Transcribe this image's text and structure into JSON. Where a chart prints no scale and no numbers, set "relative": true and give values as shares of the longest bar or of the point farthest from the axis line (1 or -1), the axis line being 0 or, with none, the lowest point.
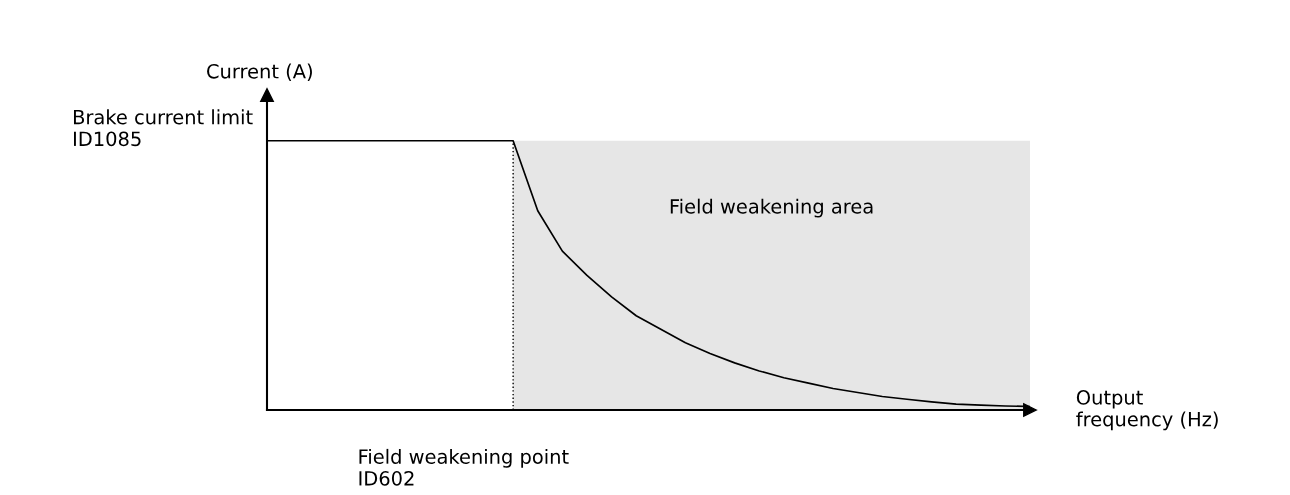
{
  "chart_data": {
    "type": "line",
    "relative": true,
    "ylabel": "Current (A)",
    "xlabel": "Output\nfrequency (Hz)",
    "categories": [
      null,
      null,
      null,
      null,
      null,
      null,
      null,
      null,
      null,
      null,
      null,
      null,
      null,
      null,
      null,
      null,
      null,
      null,
      null,
      null,
      null,
      null,
      null,
      null,
      null,
      null,
      null,
      null,
      null,
      null,
      null,
      null
    ],
    "series": [
      {
        "color": "#000000",
        "values": [
          1,
          1,
          1,
          1,
          1,
          1,
          1,
          1,
          1,
          1,
          1,
          0.74,
          0.59,
          0.5,
          0.42,
          0.35,
          0.3,
          0.25,
          0.21,
          0.175,
          0.145,
          0.12,
          0.1,
          0.08,
          0.065,
          0.05,
          0.04,
          0.03,
          0.022,
          0.018,
          0.015,
          0.013
        ]
      }
    ],
    "annotations": [
      "Brake current limit\nID1085",
      "Field weakening area",
      "Field weakening point\nID602"
    ],
    "marker": "none",
    "line_style": "solid"
  }
}
